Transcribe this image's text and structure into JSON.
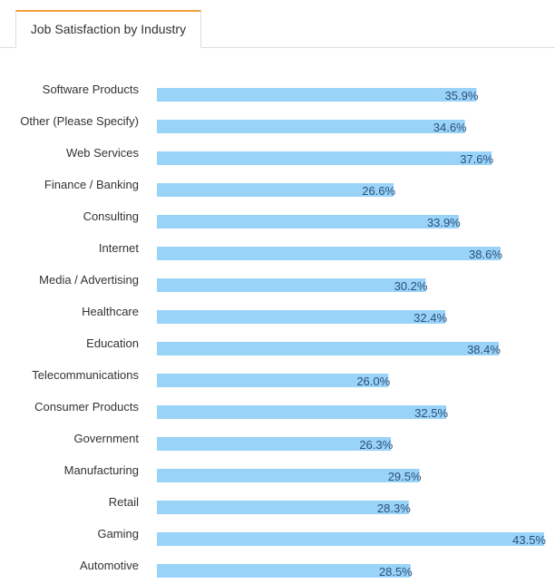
{
  "tabs": [
    {
      "label": "Job Satisfaction by Industry",
      "active": true
    }
  ],
  "colors": {
    "bar": "#99d3f7",
    "value_text": "#2c4f7c",
    "tab_accent": "#f0a23a"
  },
  "chart_data": {
    "type": "bar",
    "orientation": "horizontal",
    "categories": [
      "Software Products",
      "Other (Please Specify)",
      "Web Services",
      "Finance / Banking",
      "Consulting",
      "Internet",
      "Media / Advertising",
      "Healthcare",
      "Education",
      "Telecommunications",
      "Consumer Products",
      "Government",
      "Manufacturing",
      "Retail",
      "Gaming",
      "Automotive"
    ],
    "values": [
      35.9,
      34.6,
      37.6,
      26.6,
      33.9,
      38.6,
      30.2,
      32.4,
      38.4,
      26.0,
      32.5,
      26.3,
      29.5,
      28.3,
      43.5,
      28.5
    ],
    "value_labels": [
      "35.9%",
      "34.6%",
      "37.6%",
      "26.6%",
      "33.9%",
      "38.6%",
      "30.2%",
      "32.4%",
      "38.4%",
      "26.0%",
      "32.5%",
      "26.3%",
      "29.5%",
      "28.3%",
      "43.5%",
      "28.5%"
    ],
    "unit": "%",
    "xlim": [
      0,
      43.5
    ],
    "grid": false,
    "legend": "none"
  }
}
